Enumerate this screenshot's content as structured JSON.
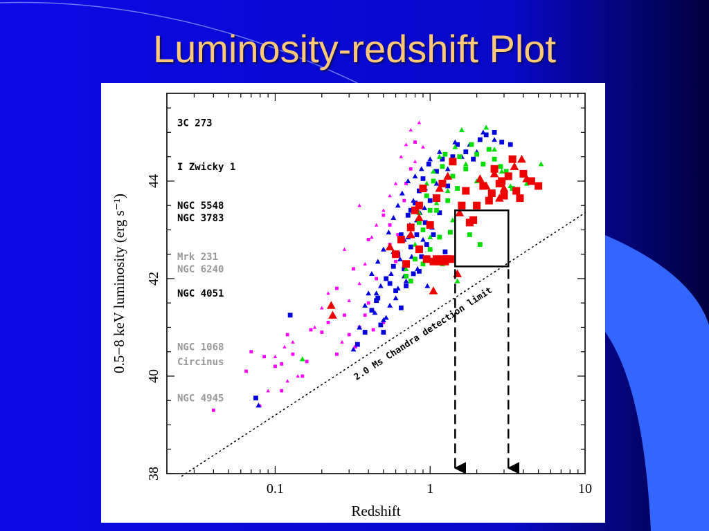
{
  "slide": {
    "title": "Luminosity-redshift Plot",
    "colors": {
      "background": "#0a0ae6",
      "background_dark": "#00005a",
      "title": "#ffc879",
      "accent_swoosh": "#3366ff"
    }
  },
  "chart_data": {
    "type": "scatter",
    "title": "",
    "xlabel": "Redshift",
    "ylabel": "0.5−8 keV luminosity (erg s⁻¹)",
    "x_scale": "log",
    "xlim": [
      0.02,
      10
    ],
    "ylim": [
      38,
      45.8
    ],
    "x_ticks": [
      {
        "value": 0.1,
        "label": "0.1"
      },
      {
        "value": 1,
        "label": "1"
      },
      {
        "value": 10,
        "label": "10"
      }
    ],
    "y_ticks": [
      {
        "value": 38,
        "label": "38"
      },
      {
        "value": 40,
        "label": "40"
      },
      {
        "value": 42,
        "label": "42"
      },
      {
        "value": 44,
        "label": "44"
      }
    ],
    "grid": false,
    "reference_objects": [
      {
        "name": "3C 273",
        "y": 45.2,
        "color": "#000000"
      },
      {
        "name": "I Zwicky 1",
        "y": 44.3,
        "color": "#000000"
      },
      {
        "name": "NGC 5548",
        "y": 43.5,
        "color": "#000000"
      },
      {
        "name": "NGC 3783",
        "y": 43.25,
        "color": "#000000"
      },
      {
        "name": "Mrk 231",
        "y": 42.45,
        "color": "#999999"
      },
      {
        "name": "NGC 6240",
        "y": 42.2,
        "color": "#999999"
      },
      {
        "name": "NGC 4051",
        "y": 41.7,
        "color": "#000000"
      },
      {
        "name": "NGC 1068",
        "y": 40.6,
        "color": "#999999"
      },
      {
        "name": "Circinus",
        "y": 40.3,
        "color": "#999999"
      },
      {
        "name": "NGC 4945",
        "y": 39.55,
        "color": "#999999"
      }
    ],
    "detection_limit": {
      "label": "2.0 Ms Chandra detection limit",
      "style": "dotted",
      "points": [
        [
          0.025,
          37.95
        ],
        [
          10,
          43.35
        ]
      ]
    },
    "highlight_box": {
      "x0": 1.45,
      "x1": 3.2,
      "y0": 42.25,
      "y1": 43.4
    },
    "box_arrows": [
      {
        "x": 1.45,
        "to_y": 38
      },
      {
        "x": 3.2,
        "to_y": 38
      }
    ],
    "series": [
      {
        "marker": "square",
        "color": "#ff00ff",
        "size": "small",
        "points": [
          [
            0.04,
            39.3
          ],
          [
            0.065,
            40.1
          ],
          [
            0.07,
            40.5
          ],
          [
            0.085,
            40.4
          ],
          [
            0.1,
            40.2
          ],
          [
            0.11,
            40.25
          ],
          [
            0.12,
            40.85
          ],
          [
            0.13,
            40.45
          ],
          [
            0.11,
            39.7
          ],
          [
            0.15,
            40.0
          ],
          [
            0.16,
            40.3
          ],
          [
            0.17,
            40.95
          ],
          [
            0.2,
            40.9
          ],
          [
            0.22,
            41.1
          ],
          [
            0.25,
            40.45
          ],
          [
            0.28,
            41.25
          ],
          [
            0.3,
            40.85
          ],
          [
            0.33,
            40.6
          ],
          [
            0.35,
            41.0
          ],
          [
            0.38,
            41.25
          ],
          [
            0.4,
            41.5
          ],
          [
            0.43,
            40.95
          ],
          [
            0.45,
            42.0
          ],
          [
            0.5,
            41.1
          ],
          [
            0.55,
            42.7
          ],
          [
            0.6,
            42.35
          ],
          [
            0.5,
            43.3
          ],
          [
            0.55,
            43.1
          ],
          [
            0.4,
            42.8
          ],
          [
            0.7,
            43.95
          ],
          [
            0.75,
            44.25
          ],
          [
            0.8,
            44.8
          ],
          [
            0.25,
            41.8
          ],
          [
            0.32,
            42.2
          ],
          [
            0.62,
            42.9
          ],
          [
            0.68,
            43.6
          ]
        ]
      },
      {
        "marker": "triangle",
        "color": "#ff00ff",
        "size": "small",
        "points": [
          [
            0.08,
            39.4
          ],
          [
            0.09,
            39.7
          ],
          [
            0.1,
            40.4
          ],
          [
            0.115,
            40.6
          ],
          [
            0.13,
            40.7
          ],
          [
            0.14,
            40.0
          ],
          [
            0.12,
            39.9
          ],
          [
            0.18,
            41.0
          ],
          [
            0.2,
            41.4
          ],
          [
            0.24,
            41.25
          ],
          [
            0.27,
            40.7
          ],
          [
            0.3,
            41.55
          ],
          [
            0.35,
            41.9
          ],
          [
            0.38,
            42.3
          ],
          [
            0.42,
            42.85
          ],
          [
            0.45,
            43.1
          ],
          [
            0.5,
            43.4
          ],
          [
            0.55,
            43.7
          ],
          [
            0.35,
            43.5
          ],
          [
            0.6,
            43.95
          ],
          [
            0.65,
            44.5
          ],
          [
            0.7,
            44.75
          ],
          [
            0.8,
            44.4
          ],
          [
            0.9,
            44.7
          ],
          [
            0.75,
            45.05
          ],
          [
            0.85,
            45.2
          ],
          [
            0.28,
            42.6
          ],
          [
            0.22,
            41.7
          ]
        ]
      },
      {
        "marker": "square",
        "color": "#0000dd",
        "size": "medium",
        "points": [
          [
            0.075,
            39.55
          ],
          [
            0.125,
            41.25
          ],
          [
            0.34,
            40.65
          ],
          [
            0.38,
            40.9
          ],
          [
            0.42,
            41.35
          ],
          [
            0.46,
            41.6
          ],
          [
            0.48,
            41.05
          ],
          [
            0.52,
            42.0
          ],
          [
            0.55,
            41.9
          ],
          [
            0.58,
            42.25
          ],
          [
            0.6,
            41.75
          ],
          [
            0.62,
            42.5
          ],
          [
            0.65,
            42.9
          ],
          [
            0.68,
            42.2
          ],
          [
            0.7,
            41.85
          ],
          [
            0.72,
            43.3
          ],
          [
            0.75,
            42.65
          ],
          [
            0.78,
            42.1
          ],
          [
            0.8,
            43.55
          ],
          [
            0.82,
            42.9
          ],
          [
            0.85,
            43.8
          ],
          [
            0.88,
            42.45
          ],
          [
            0.9,
            44.05
          ],
          [
            0.93,
            43.15
          ],
          [
            0.95,
            42.7
          ],
          [
            0.98,
            44.35
          ],
          [
            1.0,
            43.6
          ],
          [
            1.05,
            42.9
          ],
          [
            1.1,
            44.2
          ],
          [
            1.15,
            43.35
          ],
          [
            1.2,
            44.45
          ],
          [
            1.25,
            42.55
          ],
          [
            1.3,
            43.9
          ],
          [
            1.4,
            44.5
          ],
          [
            1.5,
            44.75
          ],
          [
            1.7,
            44.6
          ],
          [
            1.9,
            44.45
          ],
          [
            2.1,
            44.85
          ],
          [
            2.3,
            44.95
          ],
          [
            2.6,
            45.0
          ],
          [
            2.9,
            44.8
          ],
          [
            3.3,
            44.75
          ],
          [
            0.5,
            40.9
          ],
          [
            0.45,
            41.55
          ],
          [
            0.65,
            41.4
          ],
          [
            0.85,
            42.15
          ],
          [
            0.75,
            43.4
          ]
        ]
      },
      {
        "marker": "triangle",
        "color": "#0000dd",
        "size": "medium",
        "points": [
          [
            0.078,
            39.4
          ],
          [
            0.32,
            40.55
          ],
          [
            0.35,
            41.0
          ],
          [
            0.38,
            41.45
          ],
          [
            0.4,
            41.7
          ],
          [
            0.42,
            42.1
          ],
          [
            0.44,
            41.3
          ],
          [
            0.46,
            42.35
          ],
          [
            0.48,
            41.85
          ],
          [
            0.5,
            42.6
          ],
          [
            0.52,
            41.2
          ],
          [
            0.54,
            42.95
          ],
          [
            0.56,
            42.1
          ],
          [
            0.58,
            43.25
          ],
          [
            0.6,
            41.6
          ],
          [
            0.62,
            43.5
          ],
          [
            0.64,
            42.4
          ],
          [
            0.66,
            43.75
          ],
          [
            0.68,
            42.8
          ],
          [
            0.7,
            41.95
          ],
          [
            0.72,
            44.0
          ],
          [
            0.74,
            43.1
          ],
          [
            0.76,
            42.45
          ],
          [
            0.78,
            43.6
          ],
          [
            0.8,
            44.1
          ],
          [
            0.83,
            42.2
          ],
          [
            0.86,
            43.35
          ],
          [
            0.88,
            44.25
          ],
          [
            0.9,
            42.8
          ],
          [
            0.93,
            43.85
          ],
          [
            0.96,
            41.85
          ],
          [
            1.0,
            44.45
          ],
          [
            1.03,
            43.05
          ],
          [
            1.1,
            43.95
          ],
          [
            1.15,
            44.6
          ],
          [
            1.2,
            42.4
          ],
          [
            1.3,
            44.25
          ],
          [
            1.45,
            44.8
          ],
          [
            1.6,
            44.5
          ],
          [
            1.8,
            44.75
          ],
          [
            2.0,
            44.6
          ],
          [
            2.2,
            45.0
          ],
          [
            2.6,
            44.85
          ],
          [
            0.5,
            41.15
          ],
          [
            0.55,
            41.45
          ],
          [
            0.62,
            41.8
          ],
          [
            0.68,
            42.05
          ],
          [
            0.45,
            41.7
          ],
          [
            0.58,
            42.55
          ],
          [
            0.72,
            42.85
          ],
          [
            0.82,
            43.2
          ],
          [
            0.92,
            43.45
          ]
        ]
      },
      {
        "marker": "square",
        "color": "#00dd00",
        "size": "medium",
        "points": [
          [
            0.7,
            42.05
          ],
          [
            0.75,
            41.95
          ],
          [
            0.8,
            42.4
          ],
          [
            0.85,
            43.15
          ],
          [
            0.9,
            42.3
          ],
          [
            0.95,
            43.7
          ],
          [
            1.0,
            42.6
          ],
          [
            1.05,
            44.0
          ],
          [
            1.1,
            43.4
          ],
          [
            1.15,
            42.85
          ],
          [
            1.2,
            44.3
          ],
          [
            1.3,
            43.6
          ],
          [
            1.35,
            42.95
          ],
          [
            1.4,
            44.1
          ],
          [
            1.5,
            43.85
          ],
          [
            1.55,
            44.5
          ],
          [
            1.7,
            44.25
          ],
          [
            1.85,
            44.75
          ],
          [
            2.0,
            44.55
          ],
          [
            2.2,
            44.35
          ],
          [
            1.8,
            42.9
          ],
          [
            2.1,
            42.7
          ],
          [
            2.4,
            44.65
          ],
          [
            2.6,
            44.45
          ],
          [
            2.85,
            44.3
          ],
          [
            3.1,
            44.2
          ],
          [
            3.4,
            43.85
          ],
          [
            1.25,
            44.55
          ],
          [
            0.9,
            43.0
          ],
          [
            1.0,
            43.4
          ]
        ]
      },
      {
        "marker": "triangle",
        "color": "#00dd00",
        "size": "medium",
        "points": [
          [
            0.15,
            40.35
          ],
          [
            0.7,
            42.2
          ],
          [
            0.8,
            42.7
          ],
          [
            0.85,
            43.35
          ],
          [
            0.95,
            43.95
          ],
          [
            1.0,
            42.85
          ],
          [
            1.05,
            44.2
          ],
          [
            1.1,
            43.55
          ],
          [
            1.15,
            44.5
          ],
          [
            1.2,
            42.3
          ],
          [
            1.3,
            43.8
          ],
          [
            1.4,
            43.2
          ],
          [
            1.45,
            44.7
          ],
          [
            1.5,
            41.95
          ],
          [
            1.6,
            45.05
          ],
          [
            2.3,
            45.1
          ],
          [
            2.6,
            44.65
          ],
          [
            2.9,
            44.2
          ],
          [
            3.3,
            43.9
          ],
          [
            4.2,
            43.95
          ],
          [
            5.2,
            44.35
          ],
          [
            1.7,
            44.35
          ],
          [
            2.0,
            44.0
          ]
        ]
      },
      {
        "marker": "square",
        "color": "#ee0000",
        "size": "large",
        "points": [
          [
            0.6,
            42.5
          ],
          [
            0.65,
            42.8
          ],
          [
            0.7,
            42.3
          ],
          [
            0.75,
            43.05
          ],
          [
            0.8,
            43.4
          ],
          [
            0.85,
            42.6
          ],
          [
            0.9,
            43.85
          ],
          [
            0.95,
            42.4
          ],
          [
            1.0,
            43.1
          ],
          [
            1.05,
            42.35
          ],
          [
            1.1,
            42.4
          ],
          [
            1.15,
            42.35
          ],
          [
            1.2,
            42.4
          ],
          [
            1.25,
            42.35
          ],
          [
            1.3,
            42.4
          ],
          [
            1.35,
            42.4
          ],
          [
            1.1,
            43.65
          ],
          [
            1.2,
            43.95
          ],
          [
            1.4,
            44.4
          ],
          [
            1.6,
            43.5
          ],
          [
            1.7,
            43.8
          ],
          [
            1.8,
            43.15
          ],
          [
            2.0,
            43.5
          ],
          [
            2.2,
            43.9
          ],
          [
            2.4,
            43.6
          ],
          [
            2.6,
            44.25
          ],
          [
            2.8,
            43.95
          ],
          [
            3.0,
            43.7
          ],
          [
            3.2,
            44.1
          ],
          [
            3.6,
            43.8
          ],
          [
            4.0,
            44.15
          ],
          [
            4.5,
            44.0
          ],
          [
            5.0,
            43.9
          ],
          [
            3.4,
            44.45
          ],
          [
            3.8,
            43.65
          ],
          [
            2.9,
            44.0
          ],
          [
            2.5,
            43.75
          ],
          [
            1.9,
            43.2
          ],
          [
            0.85,
            43.5
          ]
        ]
      },
      {
        "marker": "triangle",
        "color": "#ee0000",
        "size": "large",
        "points": [
          [
            0.23,
            41.45
          ],
          [
            0.235,
            41.25
          ],
          [
            0.55,
            42.65
          ],
          [
            0.75,
            42.9
          ],
          [
            0.85,
            43.25
          ],
          [
            1.05,
            41.75
          ],
          [
            1.15,
            43.85
          ],
          [
            1.3,
            44.1
          ],
          [
            1.5,
            42.1
          ],
          [
            1.55,
            43.35
          ],
          [
            2.1,
            44.05
          ],
          [
            2.3,
            43.9
          ],
          [
            2.6,
            44.15
          ],
          [
            3.0,
            43.85
          ],
          [
            3.5,
            44.3
          ],
          [
            3.9,
            44.45
          ],
          [
            4.2,
            44.05
          ],
          [
            2.8,
            43.65
          ]
        ]
      }
    ]
  }
}
